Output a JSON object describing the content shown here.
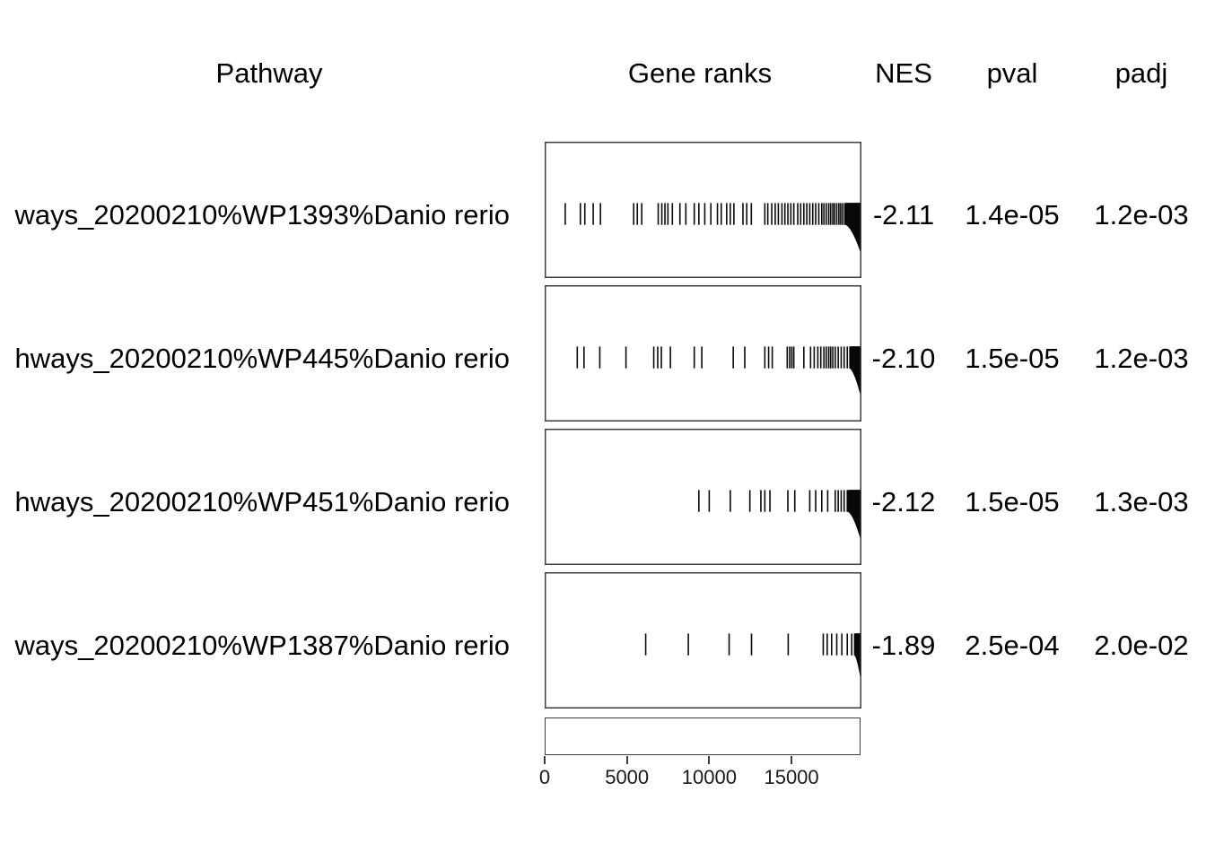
{
  "figure": {
    "kind": "gsea-results-table-plot",
    "background": "#ffffff"
  },
  "columns": {
    "pathway": "Pathway",
    "gene_ranks": "Gene ranks",
    "nes": "NES",
    "pval": "pval",
    "padj": "padj"
  },
  "colors": {
    "text": "#000000",
    "panel_border": "#3d3d3d",
    "rank_tick": "#0a0a0a",
    "axis_text": "#1a1a1a"
  },
  "chart_data": {
    "type": "table",
    "title": "",
    "xlabel": "",
    "ylabel": "",
    "x_domain": [
      0,
      19250
    ],
    "axis_ticks": {
      "values": [
        0,
        5000,
        10000,
        15000
      ],
      "labels": [
        "0",
        "5000",
        "10000",
        "15000"
      ]
    },
    "legend": null,
    "grid": false,
    "rows": [
      {
        "pathway": "ways_20200210%WP1393%Danio rerio",
        "nes": "-2.11",
        "pval": "1.4e-05",
        "padj": "1.2e-03",
        "gene_rank_ticks": [
          1250,
          2170,
          2440,
          2950,
          3390,
          5410,
          5630,
          5900,
          6900,
          7120,
          7310,
          7490,
          7760,
          8220,
          8580,
          9090,
          9370,
          9730,
          10100,
          10500,
          10730,
          11060,
          11280,
          11500,
          12050,
          12280,
          12560,
          13380,
          13560,
          13800,
          14010,
          14200,
          14420,
          14600,
          14780,
          14960,
          15140,
          15380,
          15560,
          15750,
          15930,
          16110,
          16290,
          16470,
          16660,
          16840,
          16970,
          17110,
          17260,
          17380,
          17510,
          17620,
          17750,
          17880,
          17990,
          18110,
          18240,
          18350,
          18480,
          18610,
          18710,
          18840,
          18930,
          19020,
          19120,
          19200
        ],
        "dense_tail": {
          "start": 18300,
          "end": 19250,
          "bottom_drop_frac": 0.82
        }
      },
      {
        "pathway": "hways_20200210%WP445%Danio rerio",
        "nes": "-2.10",
        "pval": "1.5e-05",
        "padj": "1.2e-03",
        "gene_rank_ticks": [
          1980,
          2390,
          3350,
          4940,
          6630,
          6870,
          7090,
          7640,
          9090,
          9550,
          11460,
          12160,
          13380,
          13610,
          13830,
          14740,
          14890,
          15020,
          15140,
          15750,
          16160,
          16380,
          16600,
          16780,
          16970,
          17110,
          17260,
          17380,
          17510,
          17660,
          17840,
          18020,
          18200,
          18390,
          18570,
          18710,
          18840,
          18970,
          19080,
          19200
        ],
        "dense_tail": {
          "start": 18550,
          "end": 19250,
          "bottom_drop_frac": 0.82
        }
      },
      {
        "pathway": "hways_20200210%WP451%Danio rerio",
        "nes": "-2.12",
        "pval": "1.5e-05",
        "padj": "1.3e-03",
        "gene_rank_ticks": [
          9370,
          10000,
          11280,
          12470,
          13140,
          13380,
          13690,
          14780,
          15200,
          16110,
          16470,
          16840,
          17200,
          17660,
          17840,
          18020,
          18200,
          18390,
          18570,
          18710,
          18860,
          18990,
          19120,
          19200
        ],
        "dense_tail": {
          "start": 18450,
          "end": 19250,
          "bottom_drop_frac": 0.82
        }
      },
      {
        "pathway": "ways_20200210%WP1387%Danio rerio",
        "nes": "-1.89",
        "pval": "2.5e-04",
        "padj": "2.0e-02",
        "gene_rank_ticks": [
          6140,
          8730,
          11210,
          12570,
          14800,
          16930,
          17170,
          17440,
          17750,
          18060,
          18390,
          18660,
          18840,
          18990,
          19120,
          19200
        ],
        "dense_tail": {
          "start": 18850,
          "end": 19250,
          "bottom_drop_frac": 0.8
        }
      }
    ]
  }
}
